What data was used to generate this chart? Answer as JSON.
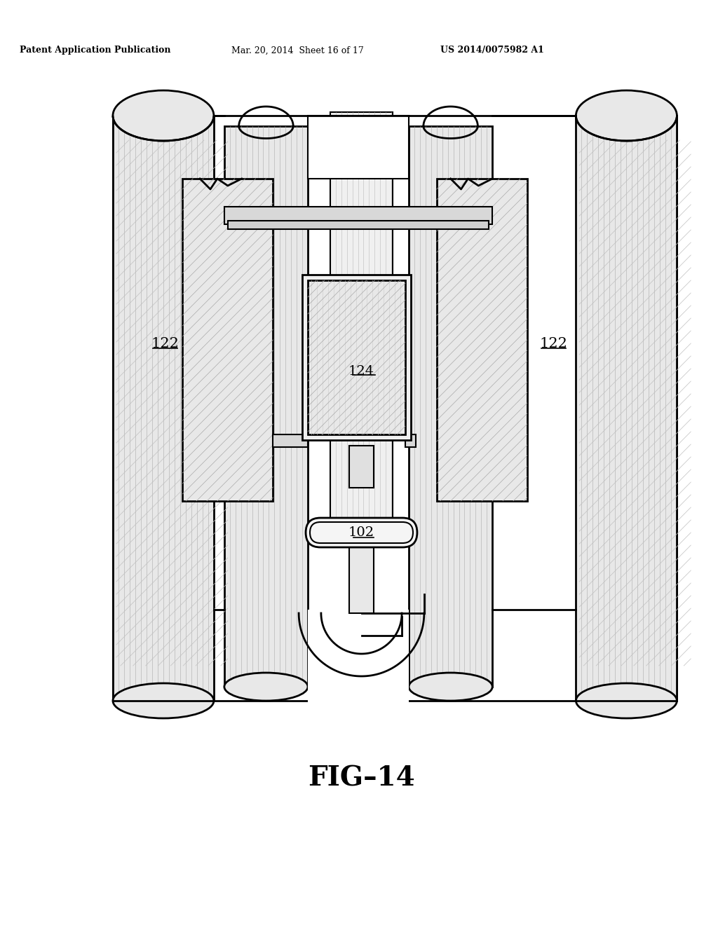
{
  "background_color": "#ffffff",
  "header_left": "Patent Application Publication",
  "header_mid": "Mar. 20, 2014  Sheet 16 of 17",
  "header_right": "US 2014/0075982 A1",
  "figure_label": "FIG–14",
  "labels": {
    "122_left": "122",
    "122_right": "122",
    "124": "124",
    "102": "102"
  },
  "line_color": "#000000",
  "hatch_color": "#555555",
  "fill_color": "#e8e8e8",
  "light_fill": "#f5f5f5"
}
